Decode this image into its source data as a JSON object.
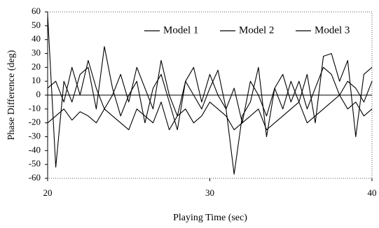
{
  "chart_data": {
    "type": "line",
    "x_label": "Playing Time (sec)",
    "y_label": "Phase Difference (deg)",
    "x": [
      20,
      20.5,
      21,
      21.5,
      22,
      22.5,
      23,
      23.5,
      24,
      24.5,
      25,
      25.5,
      26,
      26.5,
      27,
      27.5,
      28,
      28.5,
      29,
      29.5,
      30,
      30.5,
      31,
      31.5,
      32,
      32.5,
      33,
      33.5,
      34,
      34.5,
      35,
      35.5,
      36,
      36.5,
      37,
      37.5,
      38,
      38.5,
      39,
      39.5,
      40
    ],
    "series": [
      {
        "name": "Model 1",
        "color": "#000000",
        "values": [
          58,
          -52,
          10,
          -5,
          15,
          20,
          -10,
          35,
          5,
          -15,
          0,
          10,
          -20,
          5,
          15,
          -5,
          -25,
          10,
          0,
          -10,
          5,
          18,
          -10,
          -57,
          -15,
          -5,
          20,
          -30,
          5,
          -10,
          10,
          -5,
          15,
          -20,
          28,
          30,
          10,
          25,
          -30,
          15,
          20
        ]
      },
      {
        "name": "Model 2",
        "color": "#000000",
        "values": [
          -20,
          -15,
          -10,
          -18,
          -12,
          -15,
          -20,
          -10,
          -15,
          -20,
          -25,
          -10,
          -15,
          -20,
          -5,
          -25,
          -15,
          -10,
          -20,
          -15,
          -5,
          -10,
          -15,
          -25,
          -20,
          -15,
          -10,
          -25,
          -20,
          -15,
          -10,
          -5,
          -20,
          -15,
          -10,
          -5,
          0,
          -10,
          -5,
          -15,
          -10
        ]
      },
      {
        "name": "Model 3",
        "color": "#000000",
        "values": [
          5,
          10,
          -5,
          20,
          0,
          25,
          5,
          -10,
          0,
          15,
          -5,
          20,
          5,
          -10,
          25,
          0,
          -15,
          10,
          20,
          -5,
          15,
          0,
          -10,
          5,
          -20,
          10,
          0,
          -15,
          5,
          15,
          -5,
          10,
          -10,
          5,
          20,
          15,
          0,
          10,
          5,
          -5,
          10
        ]
      }
    ],
    "xlim": [
      20,
      40
    ],
    "xticks": [
      20,
      30,
      40
    ],
    "ylim": [
      -60,
      60
    ],
    "yticks": [
      60,
      50,
      40,
      30,
      20,
      10,
      0,
      -10,
      -20,
      -30,
      -40,
      -50,
      -60
    ],
    "grid": false,
    "legend": "top-right"
  }
}
